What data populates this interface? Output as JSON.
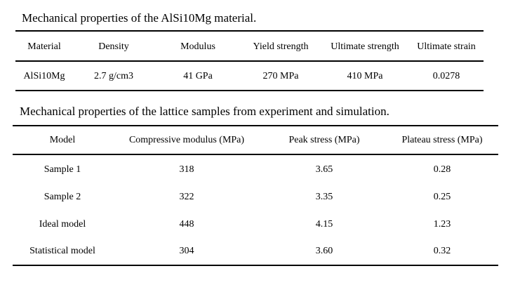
{
  "table1": {
    "caption": "Mechanical properties of the AlSi10Mg material.",
    "headers": [
      "Material",
      "Density",
      "Modulus",
      "Yield strength",
      "Ultimate strength",
      "Ultimate strain"
    ],
    "rows": [
      [
        "AlSi10Mg",
        "2.7 g/cm3",
        "41 GPa",
        "270 MPa",
        "410 MPa",
        "0.0278"
      ]
    ]
  },
  "table2": {
    "caption": "Mechanical properties of the lattice samples from experiment and simulation.",
    "headers": [
      "Model",
      "Compressive modulus (MPa)",
      "Peak stress (MPa)",
      "Plateau stress (MPa)"
    ],
    "rows": [
      [
        "Sample 1",
        "318",
        "3.65",
        "0.28"
      ],
      [
        "Sample 2",
        "322",
        "3.35",
        "0.25"
      ],
      [
        "Ideal model",
        "448",
        "4.15",
        "1.23"
      ],
      [
        "Statistical model",
        "304",
        "3.60",
        "0.32"
      ]
    ]
  }
}
